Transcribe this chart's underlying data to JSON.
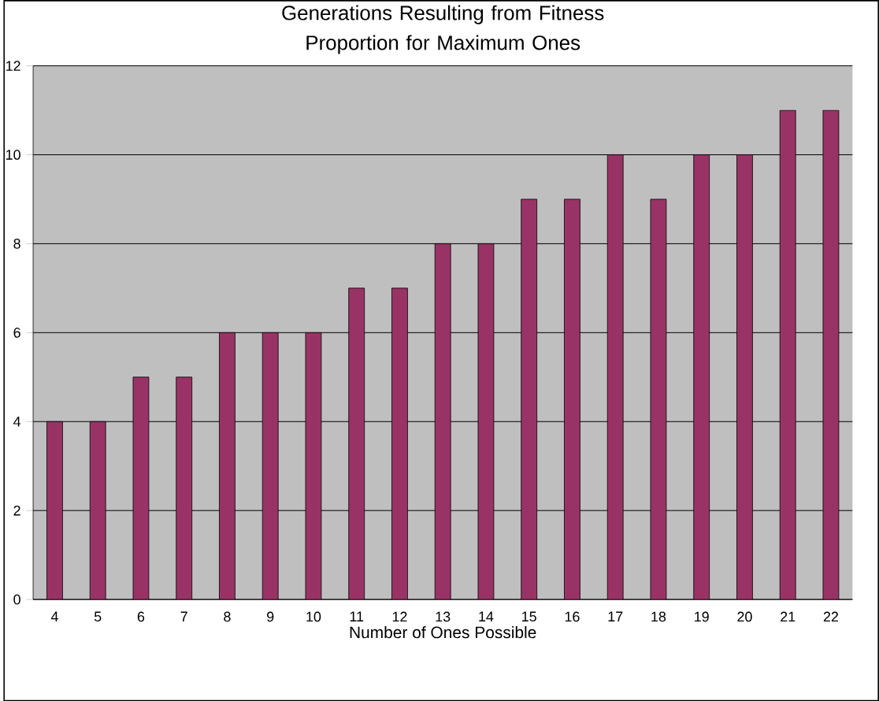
{
  "chart_data": {
    "type": "bar",
    "title": "Generations Resulting from Fitness Proportion for Maximum Ones",
    "xlabel": "Number of Ones Possible",
    "categories": [
      "4",
      "5",
      "6",
      "7",
      "8",
      "9",
      "10",
      "11",
      "12",
      "13",
      "14",
      "15",
      "16",
      "17",
      "18",
      "19",
      "20",
      "21",
      "22"
    ],
    "values": [
      4,
      4,
      5,
      5,
      6,
      6,
      6,
      7,
      7,
      8,
      8,
      9,
      9,
      10,
      9,
      10,
      10,
      11,
      11
    ],
    "color": "#993366",
    "ylim": [
      0,
      12
    ],
    "yticks": [
      0,
      2,
      4,
      6,
      8,
      10,
      12
    ],
    "grid": "y"
  }
}
